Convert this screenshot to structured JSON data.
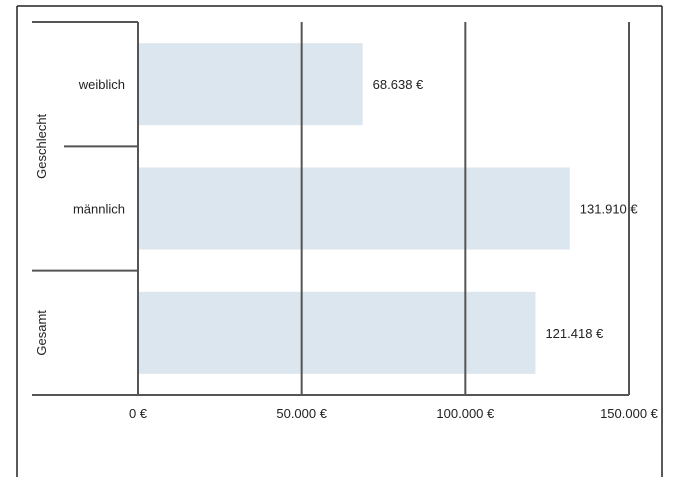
{
  "chart_data": {
    "type": "bar",
    "orientation": "horizontal",
    "groups": [
      {
        "label": "Geschlecht",
        "categories": [
          "weiblich",
          "männlich"
        ]
      },
      {
        "label": "Gesamt",
        "categories": [
          ""
        ]
      }
    ],
    "categories": [
      "weiblich",
      "männlich",
      ""
    ],
    "values": [
      68638,
      131910,
      121418
    ],
    "value_labels": [
      "68.638 €",
      "131.910 €",
      "121.418 €"
    ],
    "xlim": [
      0,
      150000
    ],
    "xticks": [
      0,
      50000,
      100000,
      150000
    ],
    "xtick_labels": [
      "0 €",
      "50.000 €",
      "100.000 €",
      "150.000 €"
    ],
    "grid": "vertical",
    "bar_color": "#dce6ee",
    "grid_color": "#555555"
  }
}
